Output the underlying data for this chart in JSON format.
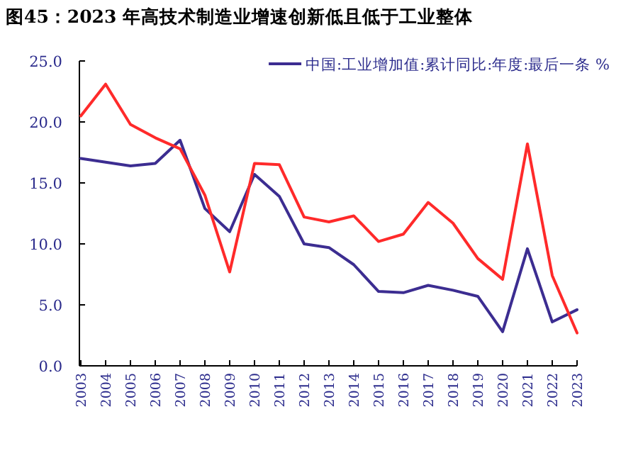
{
  "chart_data": {
    "type": "line",
    "title": "图45：2023 年高技术制造业增速创新低且低于工业整体",
    "categories": [
      "2003",
      "2004",
      "2005",
      "2006",
      "2007",
      "2008",
      "2009",
      "2010",
      "2011",
      "2012",
      "2013",
      "2014",
      "2015",
      "2016",
      "2017",
      "2018",
      "2019",
      "2020",
      "2021",
      "2022",
      "2023"
    ],
    "series": [
      {
        "name": "中国:工业增加值:累计同比:年度:最后一条 %",
        "color": "#3c2d91",
        "values": [
          17.0,
          16.7,
          16.4,
          16.6,
          18.5,
          12.9,
          11.0,
          15.7,
          13.9,
          10.0,
          9.7,
          8.3,
          6.1,
          6.0,
          6.6,
          6.2,
          5.7,
          2.8,
          9.6,
          3.6,
          4.6
        ]
      },
      {
        "color": "#ff2a2a",
        "values": [
          20.5,
          23.1,
          19.8,
          18.7,
          17.8,
          14.0,
          7.7,
          16.6,
          16.5,
          12.2,
          11.8,
          12.3,
          10.2,
          10.8,
          13.4,
          11.7,
          8.8,
          7.1,
          18.2,
          7.4,
          2.7
        ]
      }
    ],
    "ylim": [
      0,
      25
    ],
    "yticks": [
      {
        "value": 0,
        "label": "0.0"
      },
      {
        "value": 5,
        "label": "5.0"
      },
      {
        "value": 10,
        "label": "10.0"
      },
      {
        "value": 15,
        "label": "15.0"
      },
      {
        "value": 20,
        "label": "20.0"
      },
      {
        "value": 25,
        "label": "25.0"
      }
    ],
    "grid": false,
    "legend": "top right",
    "marker": "none",
    "line_style": "solid"
  }
}
